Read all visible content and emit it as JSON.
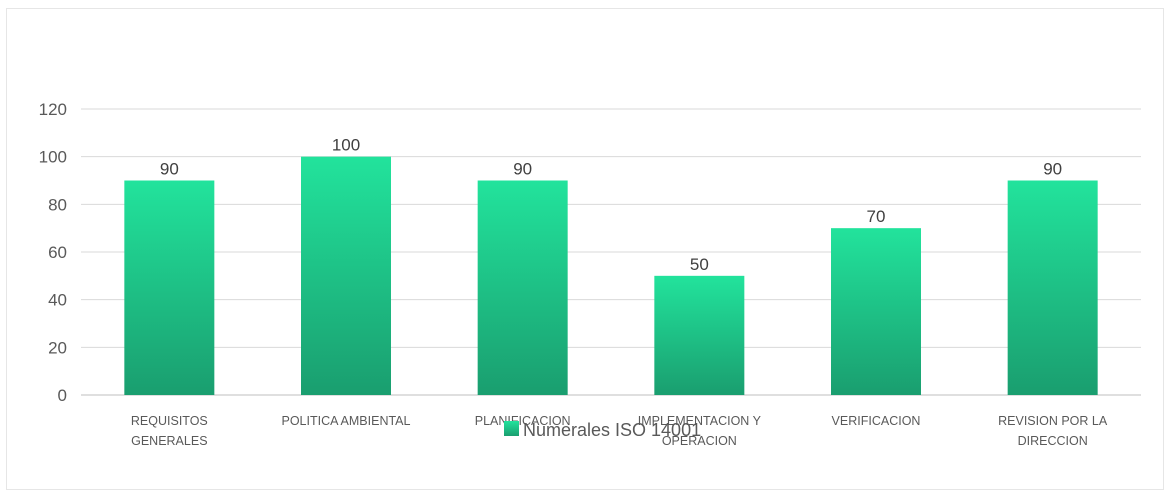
{
  "chart_data": {
    "type": "bar",
    "categories": [
      [
        "REQUISITOS",
        "GENERALES"
      ],
      [
        "POLITICA AMBIENTAL"
      ],
      [
        "PLANIFICACION"
      ],
      [
        "IMPLEMENTACION Y",
        "OPERACION"
      ],
      [
        "VERIFICACION"
      ],
      [
        "REVISION POR LA",
        "DIRECCION"
      ]
    ],
    "series": [
      {
        "name": "Numerales ISO 14001",
        "values": [
          90,
          100,
          90,
          50,
          70,
          90
        ]
      }
    ],
    "title": "",
    "xlabel": "",
    "ylabel": "",
    "ylim": [
      0,
      120
    ],
    "yticks": [
      0,
      20,
      40,
      60,
      80,
      100,
      120
    ],
    "grid": true,
    "legend_position": "bottom",
    "colors": {
      "bar_top": "#22e39c",
      "bar_bottom": "#1a9e6f",
      "grid": "#d9d9d9",
      "axis": "#bfbfbf"
    }
  }
}
